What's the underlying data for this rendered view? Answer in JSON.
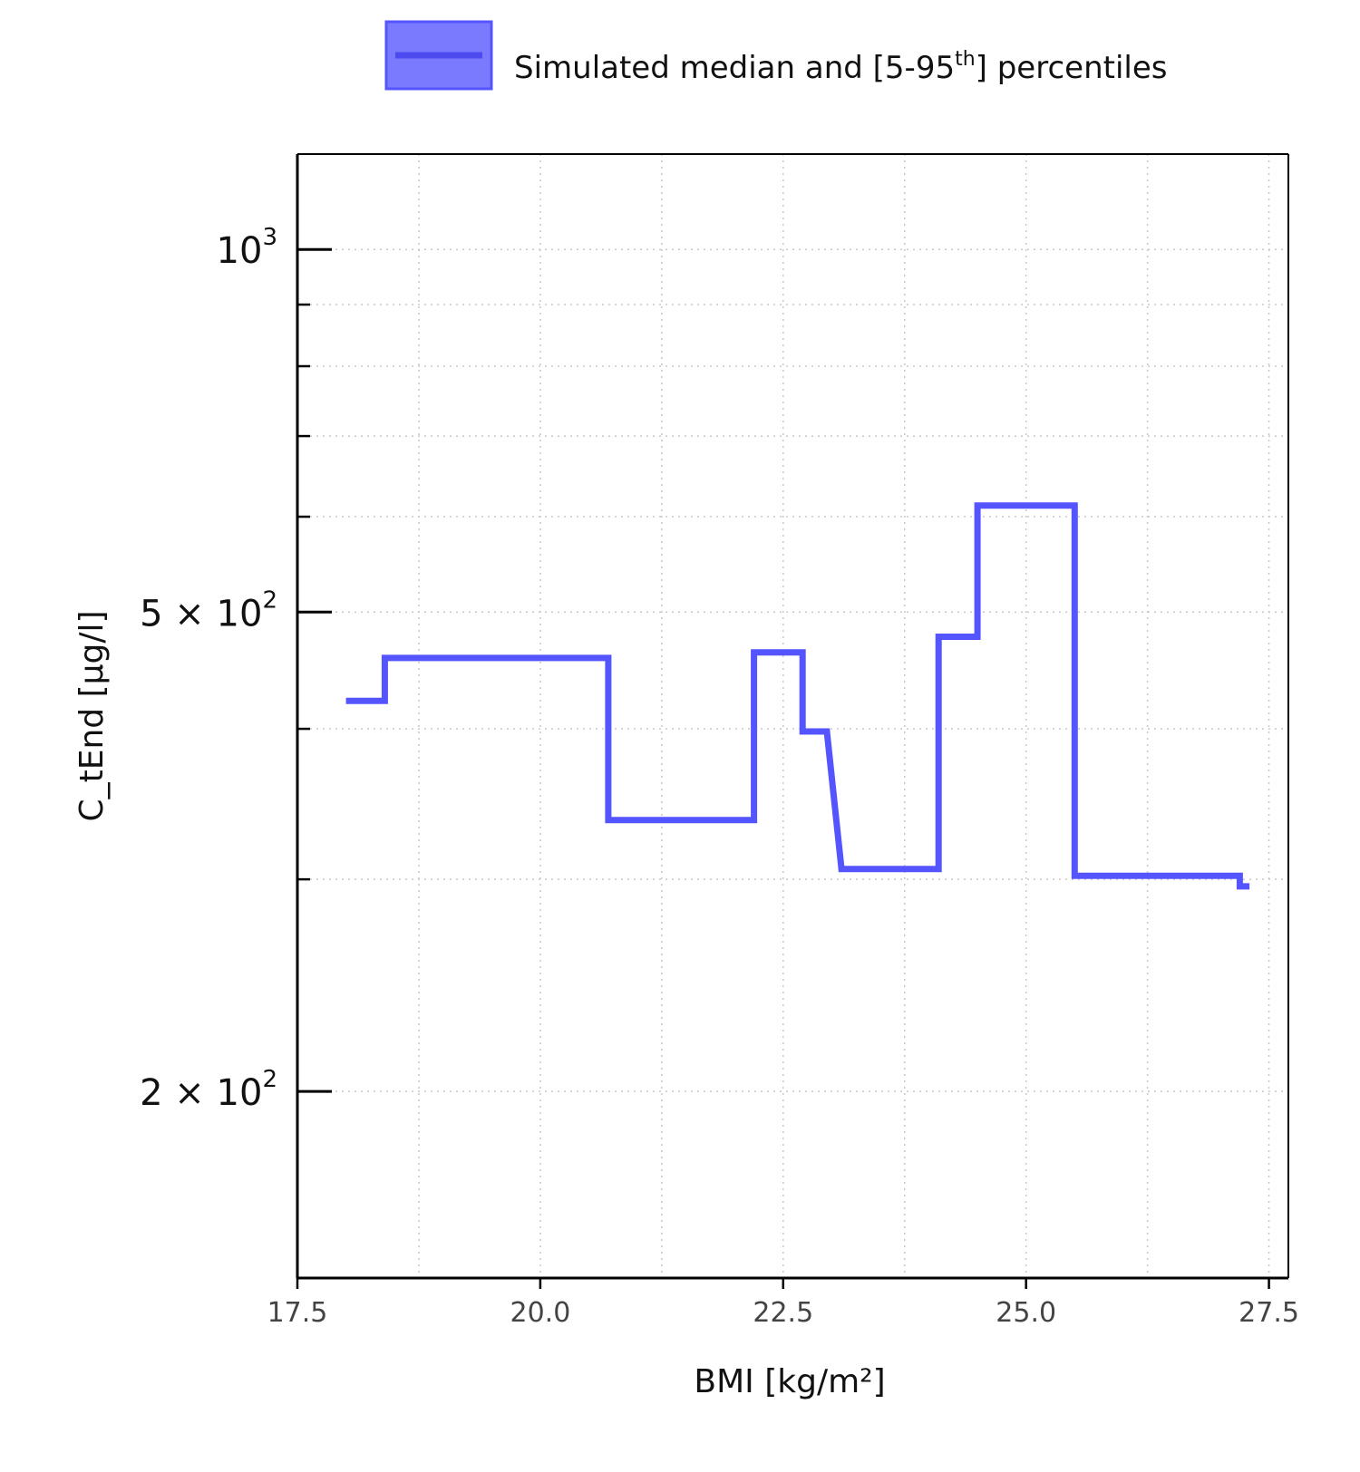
{
  "chart_data": {
    "type": "line",
    "line_style": "step",
    "title": "",
    "xlabel": "BMI [kg/m²]",
    "ylabel": "C_tEnd [µg/l]",
    "x_scale": "linear",
    "y_scale": "log",
    "xlim": [
      17.5,
      27.7
    ],
    "ylim": [
      140,
      1200
    ],
    "grid": true,
    "legend_placement": "top-center",
    "x_ticks": [
      "17.5",
      "20.0",
      "22.5",
      "25.0",
      "27.5"
    ],
    "x_tick_values": [
      17.5,
      20.0,
      22.5,
      25.0,
      27.5
    ],
    "y_ticks": [
      {
        "value": 1000,
        "base": "10",
        "exp": "3",
        "mant": ""
      },
      {
        "value": 500,
        "base": "10",
        "exp": "2",
        "mant": "5 × "
      },
      {
        "value": 200,
        "base": "10",
        "exp": "2",
        "mant": "2 × "
      }
    ],
    "y_minor_ticks": [
      300,
      400,
      600,
      700,
      800,
      900
    ],
    "legend": [
      {
        "label": "Simulated median and [5-95",
        "sup": "th",
        "label_end": "] percentiles",
        "color": "#5555ff"
      }
    ],
    "series": [
      {
        "name": "Simulated median and [5-95th] percentiles",
        "color": "#5555ff",
        "x": [
          18.0,
          18.4,
          18.4,
          20.7,
          20.7,
          22.2,
          22.2,
          22.7,
          22.7,
          22.95,
          23.1,
          24.1,
          24.1,
          24.5,
          24.5,
          25.5,
          25.5,
          27.2,
          27.2,
          27.3
        ],
        "y": [
          422,
          422,
          458,
          458,
          336,
          336,
          463,
          463,
          398,
          398,
          306,
          306,
          477,
          477,
          613,
          613,
          302,
          302,
          296,
          296
        ]
      }
    ]
  }
}
